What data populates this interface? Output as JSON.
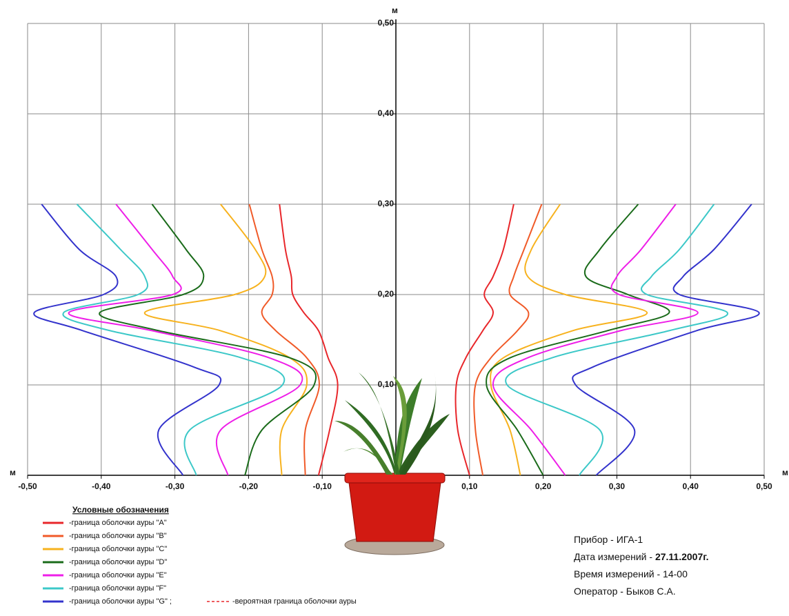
{
  "chart_data": {
    "type": "line",
    "x_unit": "м",
    "y_unit": "м",
    "xlim": [
      -0.5,
      0.5
    ],
    "ylim": [
      0,
      0.5
    ],
    "xticks": [
      {
        "value": -0.5,
        "label": "-0,50"
      },
      {
        "value": -0.4,
        "label": "-0,40"
      },
      {
        "value": -0.3,
        "label": "-0,30"
      },
      {
        "value": -0.2,
        "label": "-0,20"
      },
      {
        "value": -0.1,
        "label": "-0,10"
      },
      {
        "value": 0.1,
        "label": "0,10"
      },
      {
        "value": 0.2,
        "label": "0,20"
      },
      {
        "value": 0.3,
        "label": "0,30"
      },
      {
        "value": 0.4,
        "label": "0,40"
      },
      {
        "value": 0.5,
        "label": "0,50"
      }
    ],
    "yticks": [
      {
        "value": 0.1,
        "label": "0,10"
      },
      {
        "value": 0.2,
        "label": "0,20"
      },
      {
        "value": 0.3,
        "label": "0,30"
      },
      {
        "value": 0.4,
        "label": "0,40"
      },
      {
        "value": 0.5,
        "label": "0,50"
      }
    ],
    "grid": true,
    "legend_title": "Условные обозначения",
    "series": [
      {
        "name": "-граница оболочки ауры \"A\"",
        "color": "#e8262a",
        "x": [
          -0.105,
          -0.09,
          -0.079,
          -0.092,
          -0.105,
          -0.125,
          -0.14,
          -0.142,
          -0.15,
          -0.158,
          null,
          0.1,
          0.084,
          0.082,
          0.095,
          0.118,
          0.132,
          0.12,
          0.132,
          0.146,
          0.16
        ],
        "y": [
          0,
          0.05,
          0.1,
          0.13,
          0.16,
          0.18,
          0.2,
          0.22,
          0.25,
          0.3,
          null,
          0,
          0.05,
          0.1,
          0.13,
          0.16,
          0.18,
          0.2,
          0.22,
          0.25,
          0.3
        ]
      },
      {
        "name": "-граница оболочки ауры \"B\"",
        "color": "#f05a28",
        "x": [
          -0.123,
          -0.123,
          -0.104,
          -0.121,
          -0.163,
          -0.182,
          -0.168,
          -0.168,
          -0.182,
          -0.199,
          null,
          0.118,
          0.108,
          0.108,
          0.129,
          0.165,
          0.18,
          0.155,
          0.16,
          0.174,
          0.198
        ],
        "y": [
          0,
          0.05,
          0.1,
          0.13,
          0.16,
          0.18,
          0.2,
          0.22,
          0.25,
          0.3,
          null,
          0,
          0.05,
          0.1,
          0.13,
          0.16,
          0.18,
          0.2,
          0.22,
          0.25,
          0.3
        ]
      },
      {
        "name": "-граница оболочки ауры \"C\"",
        "color": "#f7b21e",
        "x": [
          -0.155,
          -0.155,
          -0.121,
          -0.144,
          -0.238,
          -0.341,
          -0.219,
          -0.178,
          -0.191,
          -0.238,
          null,
          0.169,
          0.155,
          0.129,
          0.146,
          0.24,
          0.341,
          0.23,
          0.179,
          0.184,
          0.223
        ],
        "y": [
          0,
          0.05,
          0.1,
          0.13,
          0.16,
          0.18,
          0.2,
          0.22,
          0.25,
          0.3,
          null,
          0,
          0.05,
          0.1,
          0.13,
          0.16,
          0.18,
          0.2,
          0.22,
          0.25,
          0.3
        ]
      },
      {
        "name": "-граница оболочки ауры \"D\"",
        "color": "#1a6b1a",
        "x": [
          -0.205,
          -0.182,
          -0.111,
          -0.144,
          -0.322,
          -0.402,
          -0.289,
          -0.261,
          -0.285,
          -0.331,
          null,
          0.2,
          0.165,
          0.123,
          0.155,
          0.287,
          0.371,
          0.315,
          0.258,
          0.277,
          0.329
        ],
        "y": [
          0,
          0.05,
          0.1,
          0.13,
          0.16,
          0.18,
          0.2,
          0.22,
          0.25,
          0.3,
          null,
          0,
          0.05,
          0.1,
          0.13,
          0.16,
          0.18,
          0.2,
          0.22,
          0.25,
          0.3
        ]
      },
      {
        "name": "-граница оболочки ауры \"E\"",
        "color": "#ee1ee8",
        "x": [
          -0.228,
          -0.238,
          -0.13,
          -0.172,
          -0.331,
          -0.444,
          -0.303,
          -0.303,
          -0.331,
          -0.38,
          null,
          0.23,
          0.184,
          0.132,
          0.179,
          0.305,
          0.41,
          0.303,
          0.3,
          0.333,
          0.38
        ],
        "y": [
          0,
          0.05,
          0.1,
          0.13,
          0.16,
          0.18,
          0.2,
          0.22,
          0.25,
          0.3,
          null,
          0,
          0.05,
          0.1,
          0.13,
          0.16,
          0.18,
          0.2,
          0.22,
          0.25,
          0.3
        ]
      },
      {
        "name": "-граница оболочки ауры \"F\"",
        "color": "#3cc8c8",
        "x": [
          -0.271,
          -0.28,
          -0.154,
          -0.21,
          -0.388,
          -0.451,
          -0.35,
          -0.341,
          -0.374,
          -0.433,
          null,
          0.249,
          0.277,
          0.151,
          0.212,
          0.371,
          0.45,
          0.341,
          0.347,
          0.385,
          0.432
        ],
        "y": [
          0,
          0.05,
          0.1,
          0.13,
          0.16,
          0.18,
          0.2,
          0.22,
          0.25,
          0.3,
          null,
          0,
          0.05,
          0.1,
          0.13,
          0.16,
          0.18,
          0.2,
          0.22,
          0.25,
          0.3
        ]
      },
      {
        "name": "-граница оболочки ауры \"G\" ;",
        "color": "#3333cc",
        "x": [
          -0.289,
          -0.322,
          -0.24,
          -0.275,
          -0.425,
          -0.491,
          -0.397,
          -0.38,
          -0.43,
          -0.481,
          null,
          0.272,
          0.324,
          0.244,
          0.268,
          0.408,
          0.493,
          0.385,
          0.39,
          0.432,
          0.483
        ],
        "y": [
          0,
          0.05,
          0.1,
          0.12,
          0.16,
          0.18,
          0.2,
          0.22,
          0.25,
          0.3,
          null,
          0,
          0.05,
          0.1,
          0.12,
          0.16,
          0.18,
          0.2,
          0.22,
          0.25,
          0.3
        ]
      }
    ],
    "probable_label": "-вероятная граница оболочки ауры",
    "probable_color": "#e8262a",
    "info": [
      {
        "label": "Прибор - ИГА-1",
        "value": ""
      },
      {
        "label": "Дата измерений - ",
        "value": "27.11.2007г."
      },
      {
        "label": "Время измерений - 14-00",
        "value": ""
      },
      {
        "label": "Оператор - Быков С.А.",
        "value": ""
      }
    ]
  }
}
